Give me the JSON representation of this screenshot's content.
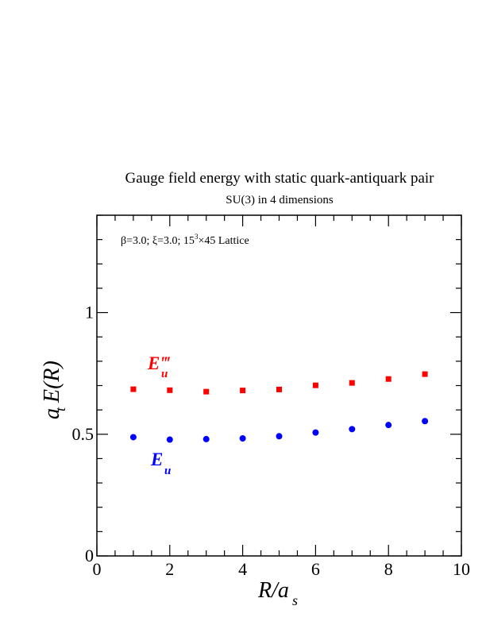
{
  "chart_data": {
    "type": "scatter",
    "title": "Gauge field energy with static quark-antiquark pair",
    "subtitle": "SU(3) in 4 dimensions",
    "xlabel_main": "R/a",
    "xlabel_sub": "s",
    "ylabel_main": "a E(R)",
    "ylabel_sub": "t",
    "xlim": [
      0,
      10
    ],
    "ylim": [
      0,
      1.4
    ],
    "x_ticks": [
      "0",
      "2",
      "4",
      "6",
      "8",
      "10"
    ],
    "y_ticks": [
      "0",
      "0.5",
      "1"
    ],
    "annotation": {
      "part1": "β=3.0;  ξ=3.0;  15",
      "sup": "3",
      "part2": "×45 Lattice"
    },
    "series": [
      {
        "name": "E‴u",
        "label_main": "E‴",
        "label_sub": "u",
        "color": "#ff0000",
        "marker": "square",
        "x": [
          1,
          2,
          3,
          4,
          5,
          6,
          7,
          8,
          9
        ],
        "y": [
          0.685,
          0.681,
          0.675,
          0.68,
          0.684,
          0.701,
          0.711,
          0.727,
          0.747
        ]
      },
      {
        "name": "Eu",
        "label_main": "E",
        "label_sub": "u",
        "color": "#0000ff",
        "marker": "circle",
        "x": [
          1,
          2,
          3,
          4,
          5,
          6,
          7,
          8,
          9
        ],
        "y": [
          0.488,
          0.478,
          0.48,
          0.483,
          0.492,
          0.507,
          0.521,
          0.538,
          0.554
        ]
      }
    ]
  }
}
